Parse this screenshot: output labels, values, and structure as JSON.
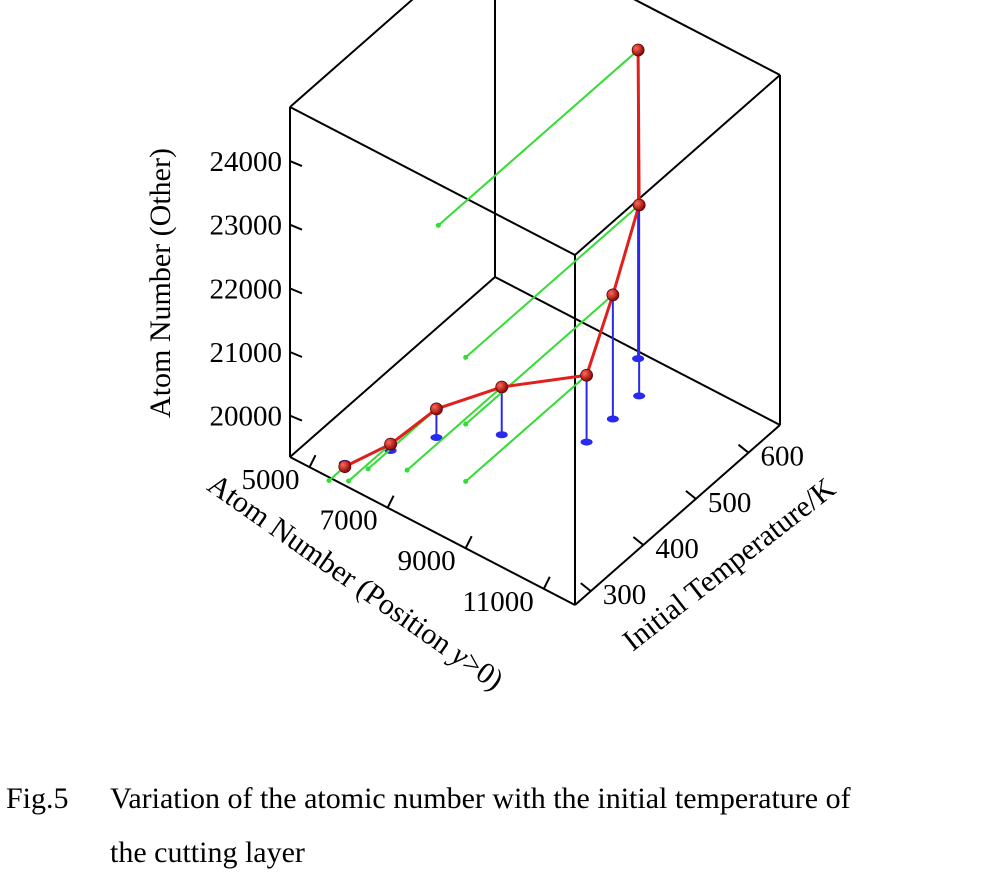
{
  "chart_data": {
    "type": "scatter",
    "projection": "3d",
    "xlabel": "Initial Temperature/K",
    "ylabel": "Atom Number (Position y>0)",
    "zlabel": "Atom Number (Other)",
    "x_ticks": [
      300,
      400,
      500,
      600
    ],
    "y_ticks": [
      5000,
      7000,
      9000,
      11000
    ],
    "z_ticks": [
      20000,
      21000,
      22000,
      23000,
      24000
    ],
    "xlim": [
      270,
      660
    ],
    "ylim": [
      4500,
      11800
    ],
    "zlim": [
      19350,
      24850
    ],
    "grid": false,
    "drop_lines": true,
    "colors": {
      "curve": "#e0201c",
      "points": "#d01010",
      "drop_to_floor": "#2a2aee",
      "drop_to_back_wall": "#33dd33"
    },
    "series": [
      {
        "x": [
          300,
          350,
          400,
          450,
          500,
          550,
          600,
          650
        ],
        "y": [
          5500,
          6000,
          6500,
          7500,
          9000,
          9000,
          9000,
          8300
        ],
        "z": [
          19300,
          19450,
          19800,
          20100,
          20400,
          21300,
          22350,
          24200
        ]
      }
    ]
  },
  "caption": {
    "number": "Fig.5",
    "line1": "Variation of the atomic number with the initial temperature of",
    "line2": "the cutting layer"
  }
}
